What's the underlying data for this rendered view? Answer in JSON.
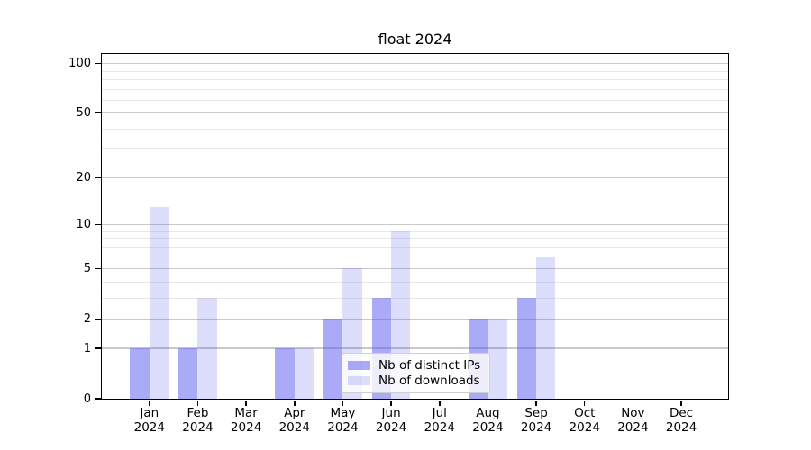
{
  "chart_data": {
    "type": "bar",
    "title": "float 2024",
    "categories": [
      "Jan",
      "Feb",
      "Mar",
      "Apr",
      "May",
      "Jun",
      "Jul",
      "Aug",
      "Sep",
      "Oct",
      "Nov",
      "Dec"
    ],
    "category_year": "2024",
    "series": [
      {
        "name": "Nb of distinct IPs",
        "color": "rgba(85,85,238,0.5)",
        "color_hex_on_white": "#aaaaf6",
        "values": [
          1,
          1,
          0,
          1,
          2,
          3,
          0,
          2,
          3,
          0,
          0,
          0
        ]
      },
      {
        "name": "Nb of downloads",
        "color": "rgba(85,85,238,0.2)",
        "color_hex_on_white": "#ddddfb",
        "values": [
          13,
          3,
          0,
          1,
          5,
          9,
          0,
          2,
          6,
          0,
          0,
          0
        ]
      }
    ],
    "yscale": "log1p",
    "ylim": [
      0,
      115
    ],
    "y_major_ticks": [
      0,
      1,
      2,
      5,
      10,
      20,
      50,
      100
    ],
    "y_minor_ticks": [
      3,
      4,
      6,
      7,
      8,
      9,
      30,
      40,
      60,
      70,
      80,
      90
    ],
    "grid": true,
    "legend_position": "lower center",
    "colors": {
      "background": "#ffffff",
      "axis": "#000000",
      "text": "#000000",
      "grid_major": "#c9c9c9",
      "grid_minor": "#e9e9e9",
      "legend_border": "#d0d0d0"
    }
  }
}
